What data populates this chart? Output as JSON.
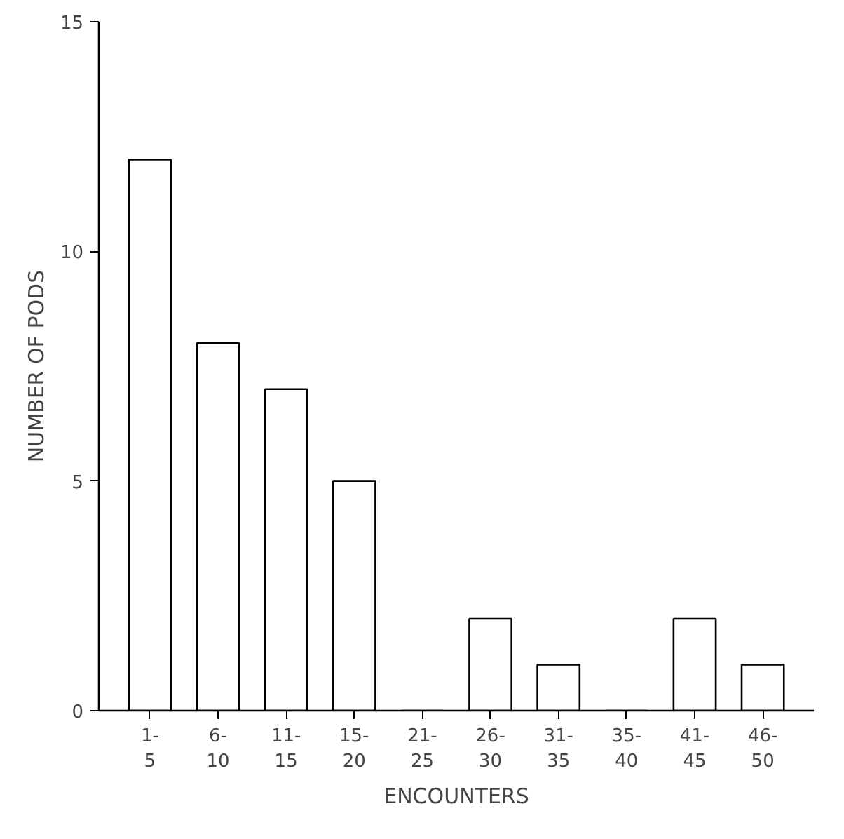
{
  "chart_data": {
    "type": "bar",
    "xlabel": "ENCOUNTERS",
    "ylabel": "NUMBER OF PODS",
    "categories": [
      "1-\n5",
      "6-\n10",
      "11-\n15",
      "15-\n20",
      "21-\n25",
      "26-\n30",
      "31-\n35",
      "35-\n40",
      "41-\n45",
      "46-\n50"
    ],
    "values": [
      12,
      8,
      7,
      5,
      0,
      2,
      1,
      0,
      2,
      1
    ],
    "color": "#ffffff",
    "ylim": [
      0,
      15
    ],
    "yticks": [
      0,
      5,
      10,
      15
    ],
    "grid": false
  }
}
